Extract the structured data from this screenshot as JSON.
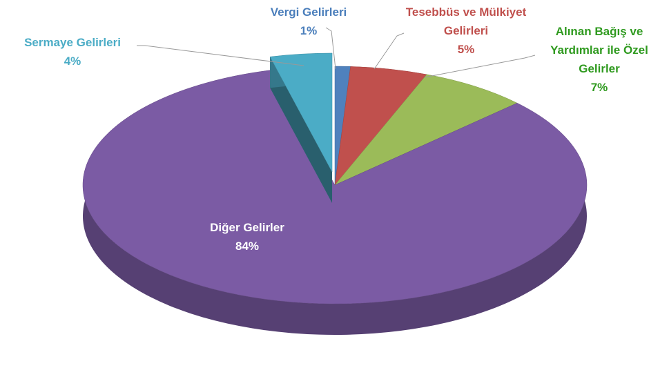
{
  "chart_data": {
    "type": "pie",
    "categories": [
      "Vergi Gelirleri",
      "Tesebbüs ve Mülkiyet Gelirleri",
      "Alınan Bağış ve Yardımlar ile Özel Gelirler",
      "Diğer Gelirler",
      "Sermaye Gelirleri"
    ],
    "values": [
      1,
      5,
      7,
      84,
      4
    ],
    "value_labels": [
      "1%",
      "5%",
      "7%",
      "84%",
      "4%"
    ],
    "colors": [
      "#4f81bd",
      "#c0504d",
      "#9bbb59",
      "#7b5ba4",
      "#4bacc6"
    ],
    "label_colors": [
      "#4a7ebb",
      "#c0504d",
      "#2f9a1f",
      "#ffffff",
      "#4bacc6"
    ],
    "exploded": [
      false,
      false,
      false,
      false,
      true
    ]
  }
}
